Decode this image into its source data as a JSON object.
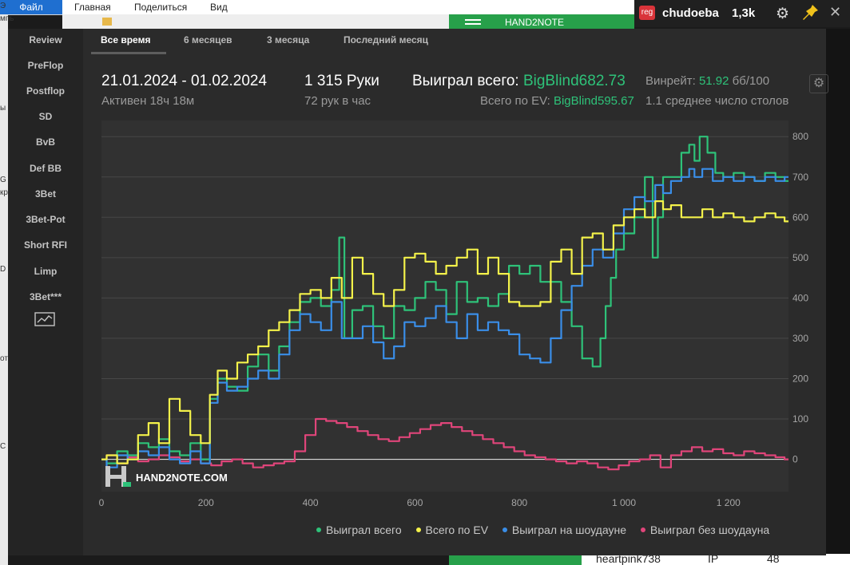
{
  "background": {
    "menu": {
      "file": "Файл",
      "home": "Главная",
      "share": "Поделиться",
      "view": "Вид"
    },
    "left_strip": [
      "Э",
      "мпь",
      "ы",
      "G",
      "кр",
      "D",
      "от",
      "С"
    ],
    "green_header": "HAND2NOTE",
    "bottom_row": {
      "name": "heartpink738",
      "pos": "IP",
      "value": "48"
    }
  },
  "notification": {
    "badge": "reg",
    "username": "chudoeba",
    "count": "1,3k"
  },
  "sidebar": {
    "items": [
      "Review",
      "PreFlop",
      "Postflop",
      "SD",
      "BvB",
      "Def BB",
      "3Bet",
      "3Bet-Pot",
      "Short RFI",
      "Limp",
      "3Bet***"
    ]
  },
  "tabs": [
    "Все время",
    "6 месяцев",
    "3 месяца",
    "Последний месяц"
  ],
  "stats": {
    "date_range": "21.01.2024 - 01.02.2024",
    "active": "Активен 18ч 18м",
    "hands": "1 315 Руки",
    "hands_per_hour": "72 рук в час",
    "won_label": "Выиграл всего:",
    "won_value": "BigBlind682.73",
    "ev_label": "Всего по EV:",
    "ev_value": "BigBlind595.67",
    "winrate_label": "Винрейт:",
    "winrate_value": "51.92",
    "winrate_unit": "бб/100",
    "tables": "1.1 среднее число столов"
  },
  "watermark": "HAND2NOTE.COM",
  "colors": {
    "green": "#2ec279",
    "yellow": "#f4f24a",
    "blue": "#3a8ee8",
    "pink": "#e0457a"
  },
  "chart_data": {
    "type": "line",
    "x_ticks": [
      "0",
      "200",
      "400",
      "600",
      "800",
      "1 000",
      "1 200"
    ],
    "y_ticks": [
      "0",
      "100",
      "200",
      "300",
      "400",
      "500",
      "600",
      "700",
      "800"
    ],
    "xlim": [
      0,
      1315
    ],
    "ylim": [
      -80,
      840
    ],
    "grid": true,
    "legend_position": "bottom-right",
    "series": [
      {
        "name": "Выиграл всего",
        "color": "#2ec279",
        "x": [
          0,
          20,
          40,
          60,
          80,
          100,
          120,
          140,
          160,
          180,
          200,
          215,
          230,
          250,
          270,
          290,
          310,
          330,
          350,
          370,
          390,
          410,
          430,
          450,
          460,
          470,
          490,
          510,
          530,
          550,
          570,
          590,
          610,
          630,
          650,
          670,
          690,
          710,
          730,
          750,
          770,
          790,
          810,
          830,
          850,
          870,
          890,
          910,
          930,
          950,
          960,
          970,
          980,
          990,
          1010,
          1030,
          1050,
          1060,
          1070,
          1080,
          1100,
          1120,
          1130,
          1140,
          1150,
          1170,
          1180,
          1200,
          1220,
          1240,
          1260,
          1280,
          1300,
          1315
        ],
        "y": [
          0,
          -10,
          20,
          10,
          40,
          30,
          50,
          20,
          10,
          40,
          0,
          150,
          200,
          180,
          170,
          230,
          260,
          220,
          280,
          340,
          390,
          400,
          380,
          420,
          550,
          300,
          370,
          380,
          330,
          300,
          380,
          370,
          400,
          440,
          420,
          360,
          440,
          390,
          400,
          380,
          410,
          480,
          460,
          480,
          440,
          440,
          390,
          330,
          250,
          230,
          300,
          380,
          450,
          520,
          560,
          600,
          700,
          500,
          600,
          700,
          700,
          760,
          780,
          740,
          800,
          760,
          710,
          700,
          710,
          700,
          690,
          710,
          700,
          690
        ]
      },
      {
        "name": "Всего по EV",
        "color": "#f4f24a",
        "x": [
          0,
          20,
          40,
          60,
          80,
          100,
          120,
          140,
          160,
          180,
          200,
          215,
          230,
          250,
          270,
          290,
          310,
          330,
          350,
          370,
          390,
          410,
          430,
          450,
          470,
          490,
          510,
          530,
          550,
          570,
          590,
          610,
          630,
          650,
          670,
          690,
          710,
          730,
          750,
          770,
          790,
          810,
          830,
          850,
          870,
          890,
          910,
          930,
          950,
          970,
          990,
          1010,
          1030,
          1050,
          1070,
          1080,
          1100,
          1120,
          1140,
          1160,
          1180,
          1200,
          1220,
          1240,
          1260,
          1280,
          1300,
          1315
        ],
        "y": [
          0,
          10,
          -10,
          0,
          60,
          90,
          40,
          150,
          120,
          60,
          40,
          160,
          220,
          200,
          240,
          260,
          280,
          320,
          340,
          370,
          410,
          420,
          400,
          450,
          400,
          500,
          460,
          410,
          380,
          420,
          500,
          510,
          490,
          460,
          480,
          500,
          520,
          460,
          500,
          460,
          390,
          380,
          380,
          390,
          490,
          520,
          460,
          550,
          560,
          520,
          580,
          600,
          620,
          600,
          640,
          620,
          630,
          600,
          600,
          620,
          600,
          610,
          600,
          590,
          600,
          610,
          600,
          590
        ]
      },
      {
        "name": "Выиграл на шоудауне",
        "color": "#3a8ee8",
        "x": [
          0,
          20,
          40,
          60,
          80,
          100,
          120,
          140,
          160,
          180,
          200,
          215,
          230,
          250,
          270,
          290,
          310,
          330,
          350,
          370,
          390,
          410,
          430,
          450,
          470,
          490,
          510,
          530,
          550,
          570,
          590,
          610,
          630,
          650,
          670,
          690,
          710,
          730,
          750,
          770,
          790,
          810,
          830,
          850,
          870,
          890,
          910,
          930,
          950,
          970,
          990,
          1010,
          1030,
          1050,
          1070,
          1080,
          1100,
          1120,
          1130,
          1140,
          1160,
          1180,
          1200,
          1220,
          1240,
          1260,
          1280,
          1300,
          1315
        ],
        "y": [
          0,
          -20,
          10,
          0,
          20,
          10,
          30,
          0,
          -10,
          20,
          -10,
          140,
          190,
          170,
          180,
          200,
          220,
          200,
          260,
          320,
          360,
          340,
          320,
          390,
          300,
          300,
          330,
          290,
          250,
          280,
          340,
          330,
          350,
          380,
          340,
          300,
          360,
          320,
          340,
          320,
          310,
          260,
          250,
          240,
          300,
          370,
          430,
          480,
          520,
          500,
          560,
          620,
          650,
          640,
          680,
          660,
          690,
          700,
          720,
          700,
          720,
          690,
          700,
          690,
          700,
          690,
          700,
          690,
          700
        ]
      },
      {
        "name": "Выиграл без шоудауна",
        "color": "#e0457a",
        "x": [
          0,
          20,
          40,
          60,
          80,
          100,
          120,
          140,
          160,
          180,
          200,
          220,
          240,
          260,
          280,
          300,
          320,
          340,
          360,
          380,
          400,
          420,
          440,
          460,
          480,
          500,
          520,
          540,
          560,
          580,
          600,
          620,
          640,
          660,
          680,
          700,
          720,
          740,
          760,
          780,
          800,
          820,
          840,
          860,
          880,
          900,
          920,
          940,
          960,
          980,
          1000,
          1020,
          1040,
          1060,
          1080,
          1100,
          1120,
          1140,
          1160,
          1180,
          1200,
          1220,
          1240,
          1260,
          1280,
          1300,
          1315
        ],
        "y": [
          0,
          10,
          -10,
          5,
          -5,
          0,
          10,
          5,
          -5,
          0,
          -10,
          -15,
          -5,
          0,
          -10,
          -20,
          -15,
          -10,
          -5,
          20,
          60,
          100,
          95,
          90,
          80,
          70,
          60,
          50,
          45,
          55,
          65,
          75,
          85,
          90,
          80,
          70,
          60,
          50,
          40,
          30,
          20,
          10,
          5,
          0,
          -5,
          -10,
          -5,
          -10,
          -20,
          -25,
          -15,
          -5,
          0,
          10,
          -20,
          10,
          20,
          30,
          20,
          25,
          15,
          10,
          20,
          15,
          10,
          5,
          0
        ]
      }
    ]
  }
}
